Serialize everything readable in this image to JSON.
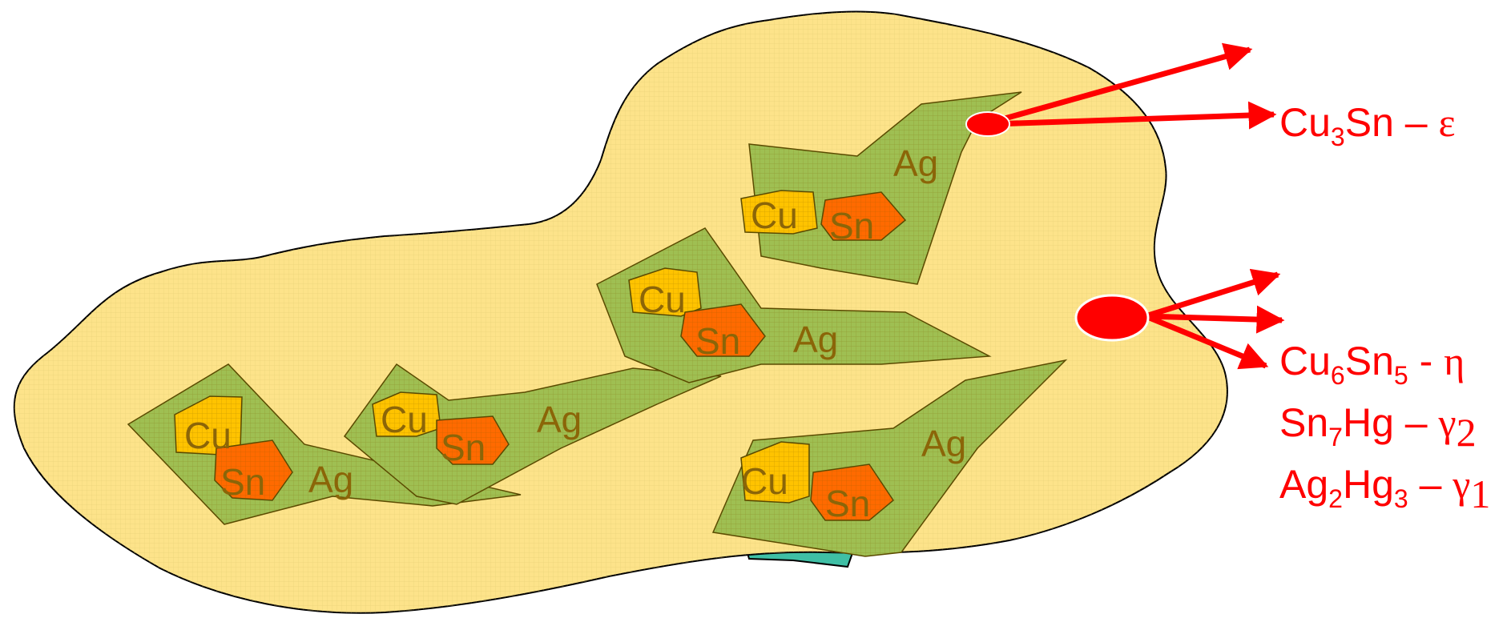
{
  "colors": {
    "matrix_fill": "#fde38a",
    "ag_fill": "#9fbf52",
    "cu_fill": "#ffc300",
    "sn_fill": "#ff6a00",
    "grain_text": "#8B6508",
    "annotation": "#ff0000"
  },
  "grains": {
    "g1": {
      "ag": "Ag",
      "cu": "Cu",
      "sn": "Sn"
    },
    "g2": {
      "ag": "Ag",
      "cu": "Cu",
      "sn": "Sn"
    },
    "g3": {
      "ag": "Ag",
      "cu": "Cu",
      "sn": "Sn"
    },
    "g4": {
      "ag": "Ag",
      "cu": "Cu",
      "sn": "Sn"
    },
    "g5": {
      "ag": "Ag",
      "cu": "Cu",
      "sn": "Sn"
    }
  },
  "phases": {
    "epsilon": {
      "formula_a": "Cu",
      "sub_a": "3",
      "formula_b": "Sn",
      "dash": " – ",
      "symbol": "ε"
    },
    "eta": {
      "formula_a": "Cu",
      "sub_a": "6",
      "formula_b": "Sn",
      "sub_b": "5",
      "dash": " - ",
      "symbol": "η"
    },
    "gamma2": {
      "formula_a": "Sn",
      "sub_a": "7",
      "formula_b": "Hg",
      "dash": " – ",
      "symbol": "γ",
      "sub_symbol": "2"
    },
    "gamma1": {
      "formula_a": "Ag",
      "sub_a": "2",
      "formula_b": "Hg",
      "sub_b": "3",
      "dash": " – ",
      "symbol": "γ",
      "sub_symbol": "1"
    }
  }
}
